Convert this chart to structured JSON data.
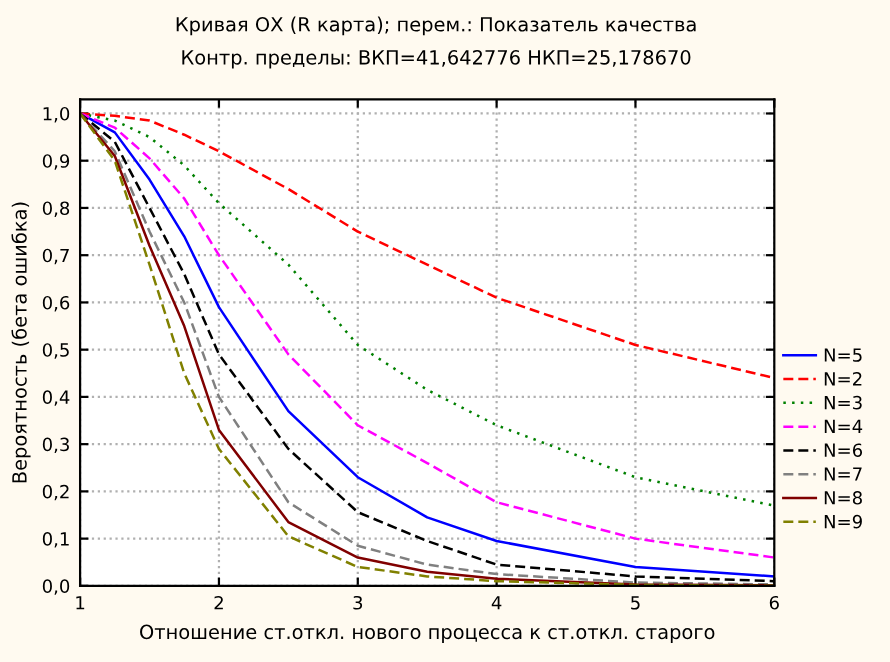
{
  "chart_data": {
    "type": "line",
    "title": "Кривая ОХ (R карта); перем.: Показатель качества",
    "subtitle": "Контр. пределы: ВКП=41,642776 НКП=25,178670",
    "xlabel": "Отношение ст.откл. нового процесса к ст.откл. старого",
    "ylabel": "Вероятность (бета ошибка)",
    "x": [
      1,
      1.25,
      1.5,
      1.75,
      2,
      2.5,
      3,
      3.5,
      4,
      5,
      6
    ],
    "series": [
      {
        "name": "N=5",
        "color": "#0000ff",
        "line_style": "solid",
        "values": [
          1.0,
          0.96,
          0.86,
          0.74,
          0.59,
          0.37,
          0.23,
          0.145,
          0.095,
          0.04,
          0.02
        ]
      },
      {
        "name": "N=2",
        "color": "#ff0000",
        "line_style": "dashed",
        "values": [
          1.0,
          0.995,
          0.985,
          0.955,
          0.92,
          0.84,
          0.75,
          0.68,
          0.61,
          0.51,
          0.44
        ]
      },
      {
        "name": "N=3",
        "color": "#008000",
        "line_style": "dotted",
        "values": [
          1.0,
          0.985,
          0.95,
          0.89,
          0.81,
          0.68,
          0.51,
          0.415,
          0.34,
          0.23,
          0.17
        ]
      },
      {
        "name": "N=4",
        "color": "#ff00ff",
        "line_style": "dashed",
        "values": [
          1.0,
          0.97,
          0.905,
          0.82,
          0.7,
          0.49,
          0.34,
          0.26,
          0.177,
          0.1,
          0.06
        ]
      },
      {
        "name": "N=6",
        "color": "#000000",
        "line_style": "dashed",
        "values": [
          1.0,
          0.94,
          0.8,
          0.66,
          0.49,
          0.29,
          0.156,
          0.095,
          0.045,
          0.02,
          0.01
        ]
      },
      {
        "name": "N=7",
        "color": "#808080",
        "line_style": "dashed",
        "values": [
          1.0,
          0.92,
          0.75,
          0.6,
          0.4,
          0.177,
          0.085,
          0.045,
          0.025,
          0.007,
          0.003
        ]
      },
      {
        "name": "N=8",
        "color": "#800000",
        "line_style": "solid",
        "values": [
          1.0,
          0.91,
          0.72,
          0.55,
          0.33,
          0.135,
          0.06,
          0.03,
          0.015,
          0.003,
          0.001
        ]
      },
      {
        "name": "N=9",
        "color": "#808000",
        "line_style": "dashed",
        "values": [
          1.0,
          0.9,
          0.68,
          0.45,
          0.29,
          0.105,
          0.04,
          0.02,
          0.01,
          0.002,
          0.0
        ]
      }
    ],
    "xlim": [
      1,
      6
    ],
    "xticks": [
      1,
      2,
      3,
      4,
      5,
      6
    ],
    "ylim": [
      0,
      1.03
    ],
    "yticks": [
      {
        "value": 0,
        "label": "0,0"
      },
      {
        "value": 0.1,
        "label": "0,1"
      },
      {
        "value": 0.2,
        "label": "0,2"
      },
      {
        "value": 0.3,
        "label": "0,3"
      },
      {
        "value": 0.4,
        "label": "0,4"
      },
      {
        "value": 0.5,
        "label": "0,5"
      },
      {
        "value": 0.6,
        "label": "0,6"
      },
      {
        "value": 0.7,
        "label": "0,7"
      },
      {
        "value": 0.8,
        "label": "0,8"
      },
      {
        "value": 0.9,
        "label": "0,9"
      },
      {
        "value": 1.0,
        "label": "1,0"
      }
    ],
    "grid": true,
    "legend": "right",
    "marker": "none"
  }
}
